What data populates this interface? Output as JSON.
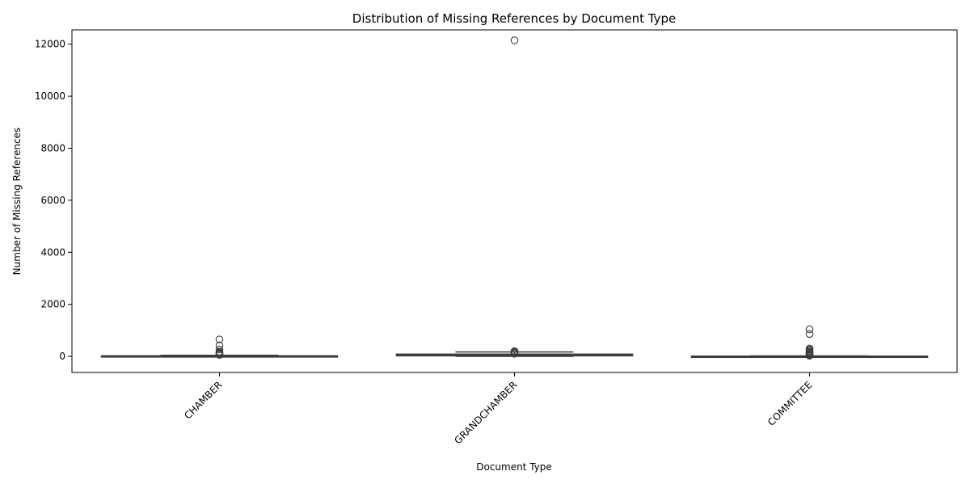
{
  "chart_data": {
    "type": "box",
    "title": "Distribution of Missing References by Document Type",
    "xlabel": "Document Type",
    "ylabel": "Number of Missing References",
    "ylim": [
      -620,
      12550
    ],
    "yticks": [
      0,
      2000,
      4000,
      6000,
      8000,
      10000,
      12000
    ],
    "x_tick_rotation": 45,
    "grid": false,
    "legend": "none",
    "categories": [
      "CHAMBER",
      "GRANDCHAMBER",
      "COMMITTEE"
    ],
    "boxes": [
      {
        "category": "CHAMBER",
        "whisker_low": 0,
        "q1": 2,
        "median": 8,
        "q3": 20,
        "whisker_high": 40,
        "outliers": [
          650,
          420,
          260,
          180,
          140,
          110,
          90,
          70,
          55
        ]
      },
      {
        "category": "GRANDCHAMBER",
        "whisker_low": 0,
        "q1": 20,
        "median": 45,
        "q3": 85,
        "whisker_high": 170,
        "outliers": [
          12150,
          200,
          180,
          150,
          120,
          100
        ]
      },
      {
        "category": "COMMITTEE",
        "whisker_low": 0,
        "q1": 1,
        "median": 3,
        "q3": 8,
        "whisker_high": 15,
        "outliers": [
          1040,
          860,
          300,
          260,
          220,
          180,
          150,
          120,
          90,
          60,
          40,
          25
        ]
      }
    ],
    "colors": {
      "box_fill": "#4c72b0",
      "line": "#3d3d3d",
      "outlier_edge": "#3d3d3d"
    }
  }
}
